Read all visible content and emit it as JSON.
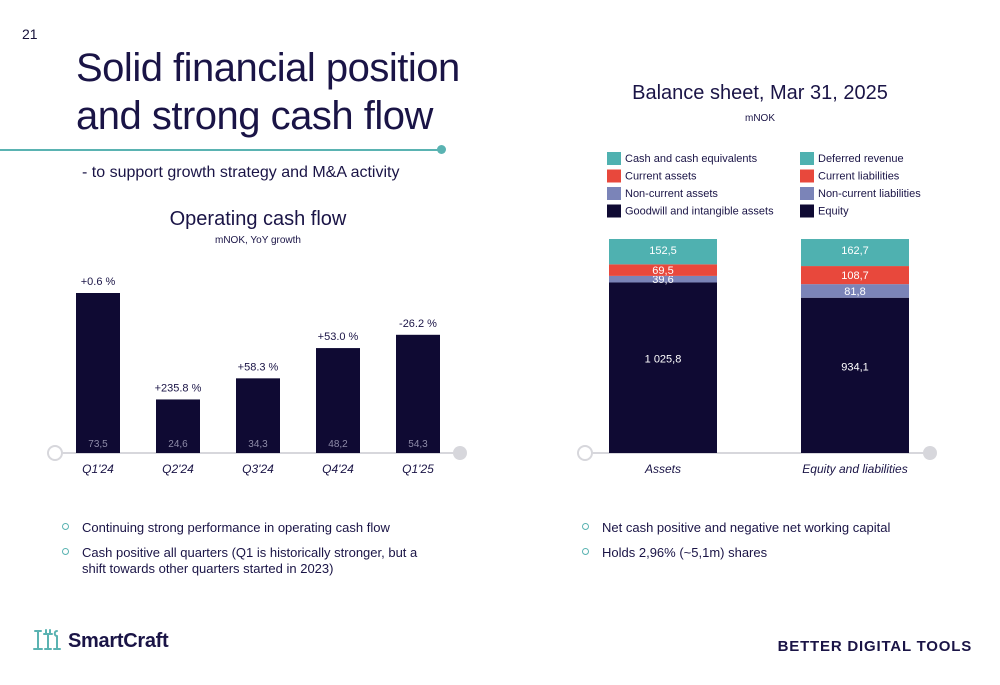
{
  "page": {
    "number": "21",
    "title": "Solid financial position and strong cash flow",
    "subtitle": "- to support growth strategy and M&A activity",
    "tagline": "BETTER DIGITAL TOOLS",
    "logo_text": "SmartCraft"
  },
  "bullets_left": [
    "Continuing strong performance in operating cash flow",
    "Cash positive all quarters (Q1 is historically stronger, but a shift towards other quarters started in 2023)"
  ],
  "bullets_right": [
    "Net cash positive and negative net working capital",
    "Holds 2,96% (~5,1m) shares"
  ],
  "colors": {
    "navy": "#0f0a33",
    "teal": "#4fb1b0",
    "red": "#e8483c",
    "slate": "#7b84b8",
    "accent": "#5ab3b2"
  },
  "chart_data": [
    {
      "type": "bar",
      "title": "Operating cash flow",
      "subtitle": "mNOK, YoY growth",
      "categories": [
        "Q1'24",
        "Q2'24",
        "Q3'24",
        "Q4'24",
        "Q1'25"
      ],
      "values": [
        73.5,
        24.6,
        34.3,
        48.2,
        54.3
      ],
      "value_labels": [
        "73,5",
        "24,6",
        "34,3",
        "48,2",
        "54,3"
      ],
      "growth_labels": [
        "+0.6 %",
        "+235.8 %",
        "+58.3 %",
        "+53.0 %",
        "-26.2 %"
      ],
      "ylim": [
        0,
        73.5
      ]
    },
    {
      "type": "bar",
      "stacked": true,
      "title": "Balance sheet, Mar 31, 2025",
      "subtitle": "mNOK",
      "categories": [
        "Assets",
        "Equity and liabilities"
      ],
      "legend": [
        "Cash and cash equivalents",
        "Deferred revenue",
        "Current assets",
        "Current liabilities",
        "Non-current assets",
        "Non-current liabilities",
        "Goodwill and intangible assets",
        "Equity"
      ],
      "series": [
        {
          "name": "Goodwill and intangible assets",
          "stack": "Assets",
          "value": 1025.8,
          "label": "1 025,8",
          "color": "#0f0a33"
        },
        {
          "name": "Non-current assets",
          "stack": "Assets",
          "value": 39.6,
          "label": "39,6",
          "color": "#7b84b8"
        },
        {
          "name": "Current assets",
          "stack": "Assets",
          "value": 69.5,
          "label": "69,5",
          "color": "#e8483c"
        },
        {
          "name": "Cash and cash equivalents",
          "stack": "Assets",
          "value": 152.5,
          "label": "152,5",
          "color": "#4fb1b0"
        },
        {
          "name": "Equity",
          "stack": "Equity and liabilities",
          "value": 934.1,
          "label": "934,1",
          "color": "#0f0a33"
        },
        {
          "name": "Non-current liabilities",
          "stack": "Equity and liabilities",
          "value": 81.8,
          "label": "81,8",
          "color": "#7b84b8"
        },
        {
          "name": "Current liabilities",
          "stack": "Equity and liabilities",
          "value": 108.7,
          "label": "108,7",
          "color": "#e8483c"
        },
        {
          "name": "Deferred revenue",
          "stack": "Equity and liabilities",
          "value": 162.7,
          "label": "162,7",
          "color": "#4fb1b0"
        }
      ]
    }
  ]
}
